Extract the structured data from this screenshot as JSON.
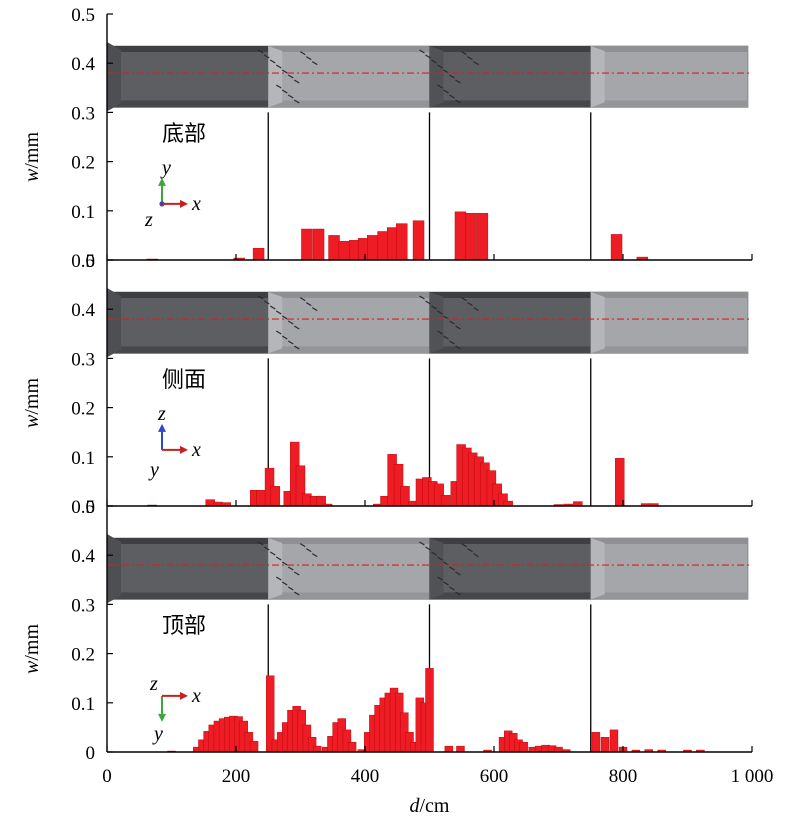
{
  "chart_data": [
    {
      "type": "bar",
      "panel_label": "底部",
      "axis_triad": [
        "y",
        "z",
        "x"
      ],
      "ylabel": "w/mm",
      "xlabel": "",
      "xlim": [
        0,
        1000
      ],
      "ylim": [
        0,
        0.5
      ],
      "yticks": [
        "0",
        "0.1",
        "0.2",
        "0.3",
        "0.4",
        "0.5"
      ],
      "xticks": [],
      "joints": [
        250,
        500,
        750
      ],
      "bars": [
        {
          "x": 70,
          "y": 0.002
        },
        {
          "x": 205,
          "y": 0.004
        },
        {
          "x": 235,
          "y": 0.024
        },
        {
          "x": 310,
          "y": 0.063
        },
        {
          "x": 328,
          "y": 0.063
        },
        {
          "x": 352,
          "y": 0.05
        },
        {
          "x": 368,
          "y": 0.038
        },
        {
          "x": 384,
          "y": 0.04
        },
        {
          "x": 398,
          "y": 0.044
        },
        {
          "x": 412,
          "y": 0.05
        },
        {
          "x": 428,
          "y": 0.058
        },
        {
          "x": 443,
          "y": 0.066
        },
        {
          "x": 457,
          "y": 0.074
        },
        {
          "x": 483,
          "y": 0.08
        },
        {
          "x": 548,
          "y": 0.098
        },
        {
          "x": 564,
          "y": 0.095
        },
        {
          "x": 582,
          "y": 0.095
        },
        {
          "x": 790,
          "y": 0.052
        },
        {
          "x": 830,
          "y": 0.006
        }
      ],
      "bar_width": 11
    },
    {
      "type": "bar",
      "panel_label": "侧面",
      "axis_triad": [
        "z",
        "y",
        "x"
      ],
      "ylabel": "w/mm",
      "xlabel": "",
      "xlim": [
        0,
        1000
      ],
      "ylim": [
        0,
        0.5
      ],
      "yticks": [
        "0",
        "0.1",
        "0.2",
        "0.3",
        "0.4",
        "0.5"
      ],
      "xticks": [],
      "joints": [
        250,
        500,
        750
      ],
      "bars": [
        {
          "x": 70,
          "y": 0.002
        },
        {
          "x": 160,
          "y": 0.013
        },
        {
          "x": 172,
          "y": 0.008
        },
        {
          "x": 185,
          "y": 0.007
        },
        {
          "x": 229,
          "y": 0.032
        },
        {
          "x": 239,
          "y": 0.032
        },
        {
          "x": 252,
          "y": 0.077
        },
        {
          "x": 261,
          "y": 0.04
        },
        {
          "x": 281,
          "y": 0.03
        },
        {
          "x": 291,
          "y": 0.13
        },
        {
          "x": 300,
          "y": 0.082
        },
        {
          "x": 310,
          "y": 0.025
        },
        {
          "x": 322,
          "y": 0.02
        },
        {
          "x": 332,
          "y": 0.02
        },
        {
          "x": 342,
          "y": 0.004
        },
        {
          "x": 420,
          "y": 0.004
        },
        {
          "x": 431,
          "y": 0.02
        },
        {
          "x": 442,
          "y": 0.105
        },
        {
          "x": 452,
          "y": 0.085
        },
        {
          "x": 462,
          "y": 0.04
        },
        {
          "x": 475,
          "y": 0.01
        },
        {
          "x": 486,
          "y": 0.055
        },
        {
          "x": 496,
          "y": 0.058
        },
        {
          "x": 505,
          "y": 0.05
        },
        {
          "x": 515,
          "y": 0.045
        },
        {
          "x": 525,
          "y": 0.022
        },
        {
          "x": 540,
          "y": 0.05
        },
        {
          "x": 549,
          "y": 0.125
        },
        {
          "x": 558,
          "y": 0.118
        },
        {
          "x": 567,
          "y": 0.108
        },
        {
          "x": 577,
          "y": 0.1
        },
        {
          "x": 586,
          "y": 0.088
        },
        {
          "x": 596,
          "y": 0.072
        },
        {
          "x": 605,
          "y": 0.045
        },
        {
          "x": 614,
          "y": 0.025
        },
        {
          "x": 622,
          "y": 0.01
        },
        {
          "x": 700,
          "y": 0.003
        },
        {
          "x": 715,
          "y": 0.004
        },
        {
          "x": 730,
          "y": 0.009
        },
        {
          "x": 795,
          "y": 0.097
        },
        {
          "x": 835,
          "y": 0.005
        },
        {
          "x": 848,
          "y": 0.005
        }
      ],
      "bar_width": 9
    },
    {
      "type": "bar",
      "panel_label": "顶部",
      "axis_triad": [
        "z",
        "y",
        "x"
      ],
      "ylabel": "w/mm",
      "xlabel": "d/cm",
      "xlim": [
        0,
        1000
      ],
      "ylim": [
        0,
        0.5
      ],
      "yticks": [
        "0",
        "0.1",
        "0.2",
        "0.3",
        "0.4",
        "0.5"
      ],
      "xticks": [
        "0",
        "200",
        "400",
        "600",
        "800",
        "1 000"
      ],
      "joints": [
        250,
        500,
        750
      ],
      "bars": [
        {
          "x": 100,
          "y": 0.002
        },
        {
          "x": 140,
          "y": 0.01
        },
        {
          "x": 148,
          "y": 0.025
        },
        {
          "x": 156,
          "y": 0.042
        },
        {
          "x": 164,
          "y": 0.055
        },
        {
          "x": 172,
          "y": 0.063
        },
        {
          "x": 180,
          "y": 0.068
        },
        {
          "x": 188,
          "y": 0.071
        },
        {
          "x": 196,
          "y": 0.073
        },
        {
          "x": 204,
          "y": 0.072
        },
        {
          "x": 212,
          "y": 0.063
        },
        {
          "x": 220,
          "y": 0.04
        },
        {
          "x": 228,
          "y": 0.022
        },
        {
          "x": 253,
          "y": 0.155
        },
        {
          "x": 262,
          "y": 0.025
        },
        {
          "x": 270,
          "y": 0.04
        },
        {
          "x": 278,
          "y": 0.06
        },
        {
          "x": 286,
          "y": 0.085
        },
        {
          "x": 294,
          "y": 0.093
        },
        {
          "x": 302,
          "y": 0.085
        },
        {
          "x": 310,
          "y": 0.055
        },
        {
          "x": 318,
          "y": 0.03
        },
        {
          "x": 326,
          "y": 0.012
        },
        {
          "x": 340,
          "y": 0.01
        },
        {
          "x": 348,
          "y": 0.032
        },
        {
          "x": 356,
          "y": 0.06
        },
        {
          "x": 364,
          "y": 0.068
        },
        {
          "x": 372,
          "y": 0.045
        },
        {
          "x": 380,
          "y": 0.02
        },
        {
          "x": 395,
          "y": 0.005
        },
        {
          "x": 405,
          "y": 0.04
        },
        {
          "x": 413,
          "y": 0.075
        },
        {
          "x": 421,
          "y": 0.095
        },
        {
          "x": 429,
          "y": 0.11
        },
        {
          "x": 437,
          "y": 0.12
        },
        {
          "x": 445,
          "y": 0.13
        },
        {
          "x": 453,
          "y": 0.12
        },
        {
          "x": 461,
          "y": 0.08
        },
        {
          "x": 469,
          "y": 0.04
        },
        {
          "x": 477,
          "y": 0.02
        },
        {
          "x": 485,
          "y": 0.11
        },
        {
          "x": 493,
          "y": 0.1
        },
        {
          "x": 500,
          "y": 0.17
        },
        {
          "x": 530,
          "y": 0.012
        },
        {
          "x": 548,
          "y": 0.012
        },
        {
          "x": 590,
          "y": 0.004
        },
        {
          "x": 614,
          "y": 0.03
        },
        {
          "x": 622,
          "y": 0.043
        },
        {
          "x": 630,
          "y": 0.038
        },
        {
          "x": 638,
          "y": 0.025
        },
        {
          "x": 646,
          "y": 0.02
        },
        {
          "x": 660,
          "y": 0.01
        },
        {
          "x": 670,
          "y": 0.012
        },
        {
          "x": 680,
          "y": 0.014
        },
        {
          "x": 690,
          "y": 0.013
        },
        {
          "x": 700,
          "y": 0.01
        },
        {
          "x": 712,
          "y": 0.005
        },
        {
          "x": 758,
          "y": 0.04
        },
        {
          "x": 772,
          "y": 0.03
        },
        {
          "x": 786,
          "y": 0.045
        },
        {
          "x": 800,
          "y": 0.01
        },
        {
          "x": 820,
          "y": 0.004
        },
        {
          "x": 840,
          "y": 0.005
        },
        {
          "x": 860,
          "y": 0.004
        },
        {
          "x": 900,
          "y": 0.004
        },
        {
          "x": 920,
          "y": 0.004
        }
      ],
      "bar_width": 8
    }
  ],
  "colors": {
    "bar": "#ee1c25",
    "bar_stroke": "#b00000",
    "pipe_dark": "#5c5e62",
    "pipe_light": "#a4a6aa",
    "centerline": "#d42020",
    "triad_x": "#c82020",
    "triad_y": "#3aa83a",
    "triad_z": "#2a48c8"
  }
}
